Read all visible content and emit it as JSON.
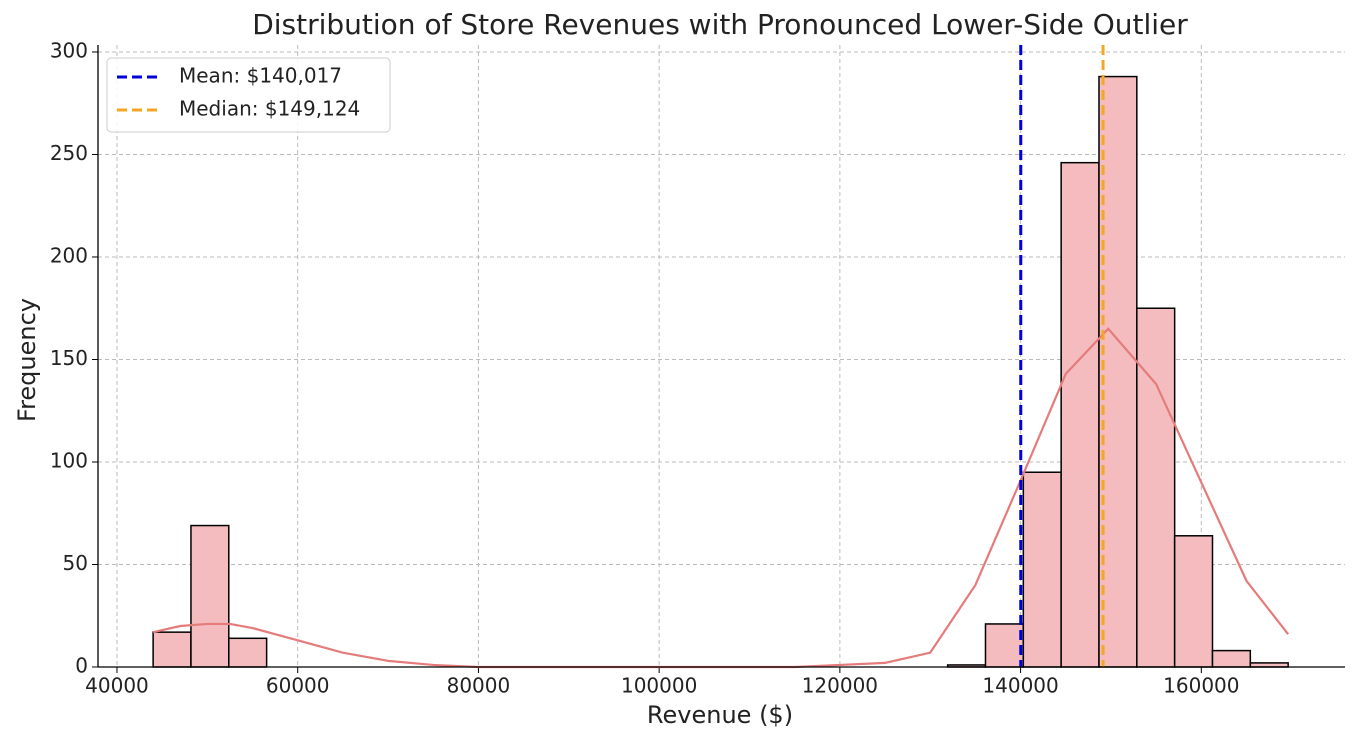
{
  "chart_data": {
    "type": "histogram",
    "title": "Distribution of Store Revenues with Pronounced Lower-Side Outlier",
    "x_label": "Revenue ($)",
    "y_label": "Frequency",
    "bins": [
      44000,
      48187,
      52374,
      56561,
      60748,
      64935,
      69122,
      73309,
      77496,
      81683,
      85870,
      90057,
      94244,
      98431,
      102618,
      106805,
      110992,
      115179,
      119366,
      123553,
      127740,
      131927,
      136114,
      140301,
      144488,
      148675,
      152862,
      157049,
      161236,
      165423,
      169610
    ],
    "values": [
      17,
      69,
      14,
      0,
      0,
      0,
      0,
      0,
      0,
      0,
      0,
      0,
      0,
      0,
      0,
      0,
      0,
      0,
      0,
      0,
      0,
      1,
      21,
      95,
      246,
      288,
      175,
      64,
      8,
      2
    ],
    "color": "#f4bcbe",
    "edgecolor": "#000000",
    "kde": {
      "color": "#e57b7b",
      "x": [
        44000,
        47000,
        50000,
        52500,
        55000,
        60000,
        65000,
        70000,
        75000,
        80000,
        90000,
        100000,
        110000,
        115000,
        120000,
        125000,
        130000,
        135000,
        140000,
        145000,
        149700,
        155000,
        160000,
        165000,
        169610
      ],
      "y": [
        17,
        20,
        21,
        21,
        19,
        13,
        7,
        3,
        1,
        0,
        0,
        0,
        0,
        0,
        1,
        2,
        7,
        40,
        91,
        143,
        165,
        138,
        90,
        42,
        16
      ]
    },
    "lines": [
      {
        "value": 140017,
        "label": "Mean: $140,017",
        "color": "#0000dd"
      },
      {
        "value": 149124,
        "label": "Median: $149,124",
        "color": "#f5a623"
      }
    ],
    "xlim": [
      37900,
      175900
    ],
    "ylim": [
      0,
      303.4
    ],
    "xticks": [
      40000,
      60000,
      80000,
      100000,
      120000,
      140000,
      160000
    ],
    "yticks": [
      0,
      50,
      100,
      150,
      200,
      250,
      300
    ],
    "grid": true,
    "legend": "upper left"
  }
}
